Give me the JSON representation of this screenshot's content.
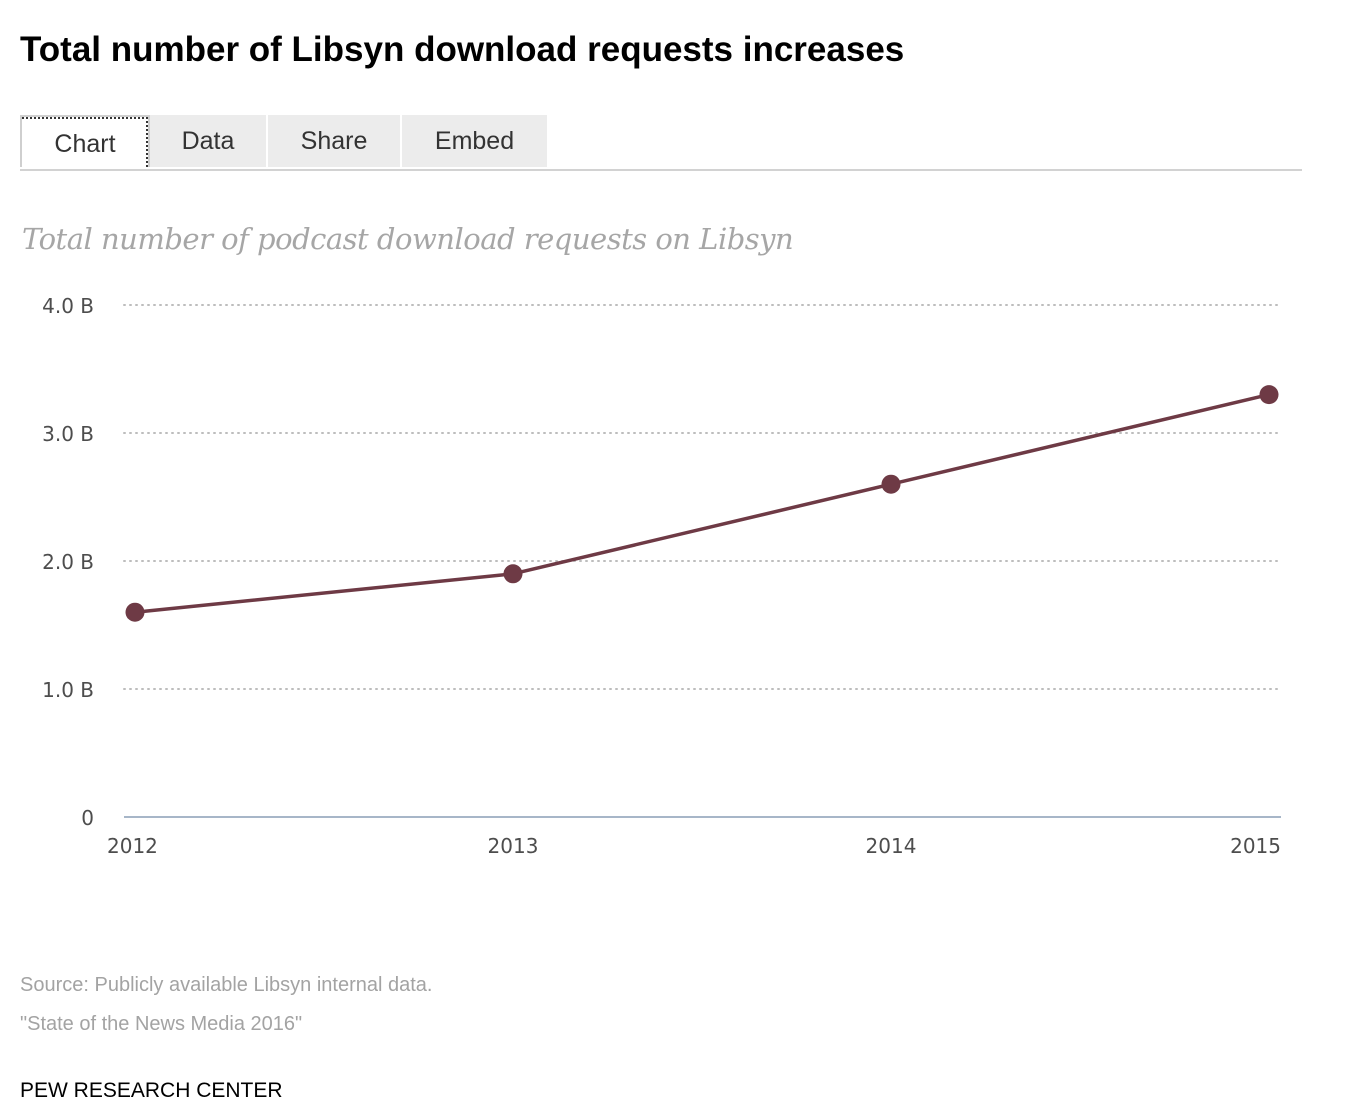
{
  "header": {
    "title": "Total number of Libsyn download requests increases"
  },
  "tabs": [
    {
      "label": "Chart",
      "active": true
    },
    {
      "label": "Data",
      "active": false
    },
    {
      "label": "Share",
      "active": false
    },
    {
      "label": "Embed",
      "active": false
    }
  ],
  "chart_data": {
    "type": "line",
    "title": "Total number of podcast download requests on Libsyn",
    "x": [
      "2012",
      "2013",
      "2014",
      "2015"
    ],
    "series": [
      {
        "values": [
          1.6,
          1.9,
          2.6,
          3.3
        ]
      }
    ],
    "y_unit": "billions",
    "y_ticks": [
      0,
      1,
      2,
      3,
      4
    ],
    "y_tick_labels": [
      "0",
      "1.0 B",
      "2.0 B",
      "3.0 B",
      "4.0 B"
    ],
    "ylim": [
      0,
      4
    ],
    "grid": true,
    "line_color": "#6e3a45"
  },
  "footer": {
    "source": "Source: Publicly available Libsyn internal data.",
    "report": "\"State of the News Media 2016\"",
    "brand": "PEW RESEARCH CENTER"
  }
}
